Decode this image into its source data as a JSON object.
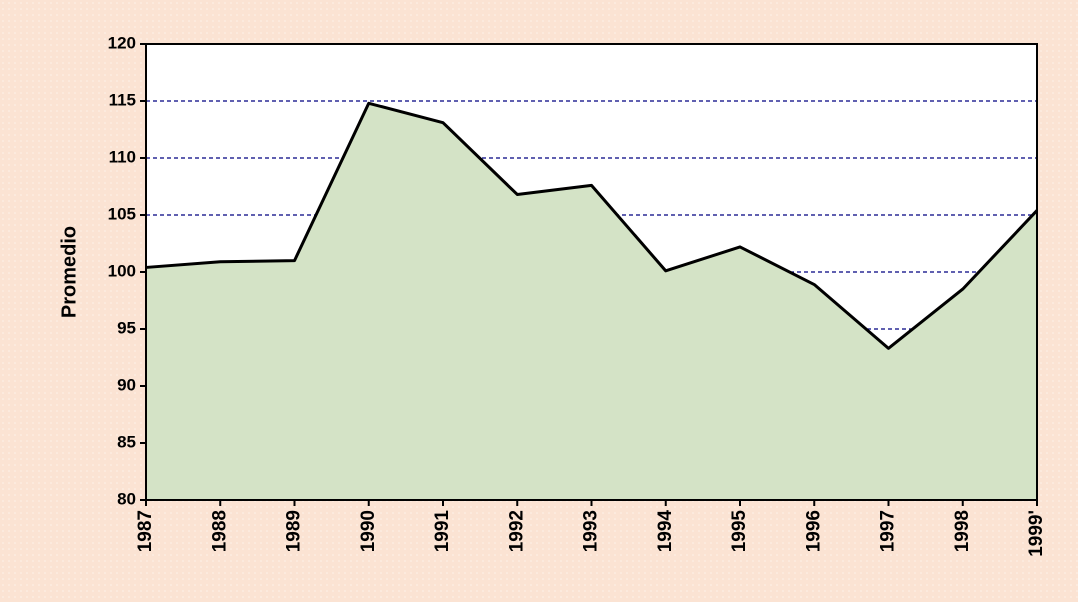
{
  "chart_data": {
    "type": "area",
    "y_label": "Promedio",
    "categories": [
      "1987",
      "1988",
      "1989",
      "1990",
      "1991",
      "1992",
      "1993",
      "1994",
      "1995",
      "1996",
      "1997",
      "1998",
      "1999'"
    ],
    "values": [
      100.4,
      100.9,
      101.0,
      114.8,
      113.1,
      106.8,
      107.6,
      100.1,
      102.2,
      98.9,
      93.3,
      98.5,
      105.4
    ],
    "color": "#d4e3c6",
    "line_color": "#000000",
    "grid_color": "#000080",
    "ylim": [
      80,
      120
    ],
    "yticks": [
      80,
      85,
      90,
      95,
      100,
      105,
      110,
      115,
      120
    ],
    "grid": true
  }
}
